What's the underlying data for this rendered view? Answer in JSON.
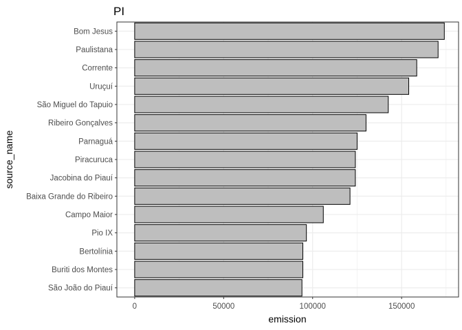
{
  "chart_data": {
    "type": "bar",
    "orientation": "horizontal",
    "title": "PI",
    "xlabel": "emission",
    "ylabel": "source_name",
    "categories": [
      "Bom Jesus",
      "Paulistana",
      "Corrente",
      "Uruçuí",
      "São Miguel do Tapuio",
      "Ribeiro Gonçalves",
      "Parnaguá",
      "Piracuruca",
      "Jacobina do Piauí",
      "Baixa Grande do Ribeiro",
      "Campo Maior",
      "Pio IX",
      "Bertolínia",
      "Buriti dos Montes",
      "São João do Piauí"
    ],
    "values": [
      174000,
      170500,
      158500,
      154000,
      142500,
      130000,
      125000,
      124000,
      124000,
      121000,
      106000,
      96500,
      94500,
      94500,
      94000
    ],
    "xlim": [
      -10000,
      182000
    ],
    "xticks": [
      0,
      50000,
      100000,
      150000
    ],
    "xtick_labels": [
      "0",
      "50000",
      "100000",
      "150000"
    ],
    "grid": true,
    "bar_fill": "#bebebe",
    "bar_stroke": "#000000",
    "grid_color": "#ebebeb",
    "panel_border": "#333333"
  }
}
